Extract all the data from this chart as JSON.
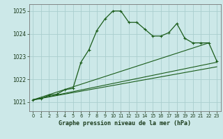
{
  "background_color": "#cce8e8",
  "grid_color": "#aacece",
  "line_color": "#1a5c1a",
  "title": "Graphe pression niveau de la mer (hPa)",
  "xlim": [
    -0.5,
    23.5
  ],
  "ylim": [
    1020.6,
    1025.3
  ],
  "yticks": [
    1021,
    1022,
    1023,
    1024,
    1025
  ],
  "xticks": [
    0,
    1,
    2,
    3,
    4,
    5,
    6,
    7,
    8,
    9,
    10,
    11,
    12,
    13,
    14,
    15,
    16,
    17,
    18,
    19,
    20,
    21,
    22,
    23
  ],
  "series1_x": [
    0,
    1,
    2,
    3,
    4,
    5,
    6,
    7,
    8,
    9,
    10,
    11,
    12,
    13,
    14,
    15,
    16,
    17,
    18,
    19,
    20,
    21,
    22,
    23
  ],
  "series1_y": [
    1021.1,
    1021.15,
    1021.3,
    1021.35,
    1021.55,
    1021.6,
    1022.75,
    1023.3,
    1024.15,
    1024.65,
    1025.0,
    1025.0,
    1024.5,
    1024.5,
    1024.2,
    1023.9,
    1023.9,
    1024.05,
    1024.45,
    1023.8,
    1023.6,
    1023.6,
    1023.6,
    1022.8
  ],
  "series2_x": [
    0,
    22
  ],
  "series2_y": [
    1021.1,
    1023.6
  ],
  "series3_x": [
    0,
    23
  ],
  "series3_y": [
    1021.1,
    1022.75
  ],
  "series4_x": [
    0,
    23
  ],
  "series4_y": [
    1021.1,
    1022.55
  ]
}
